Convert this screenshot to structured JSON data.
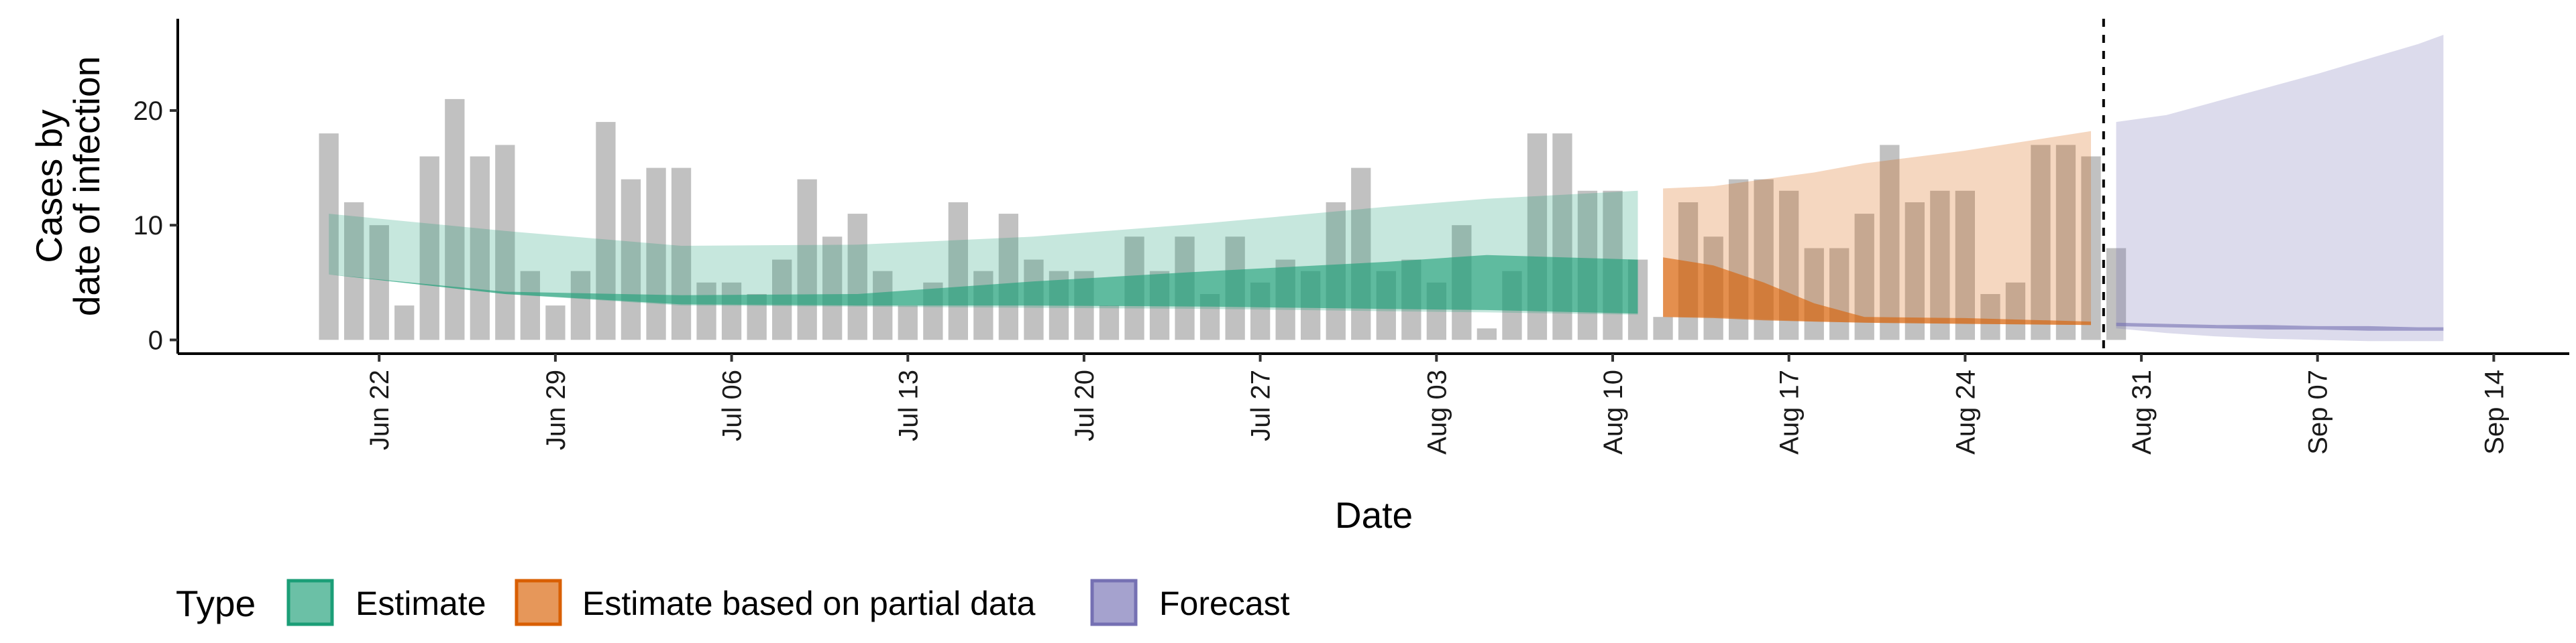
{
  "chart_data": {
    "type": "bar",
    "ylabel_lines": [
      "Cases by",
      "date of infection"
    ],
    "xlabel": "Date",
    "ylim": [
      -1.2,
      28
    ],
    "y_ticks": [
      0,
      10,
      20
    ],
    "x_range": [
      "2020-06-14",
      "2020-09-17"
    ],
    "x_ticks": [
      {
        "date": "2020-06-22",
        "label": "Jun 22"
      },
      {
        "date": "2020-06-29",
        "label": "Jun 29"
      },
      {
        "date": "2020-07-06",
        "label": "Jul 06"
      },
      {
        "date": "2020-07-13",
        "label": "Jul 13"
      },
      {
        "date": "2020-07-20",
        "label": "Jul 20"
      },
      {
        "date": "2020-07-27",
        "label": "Jul 27"
      },
      {
        "date": "2020-08-03",
        "label": "Aug 03"
      },
      {
        "date": "2020-08-10",
        "label": "Aug 10"
      },
      {
        "date": "2020-08-17",
        "label": "Aug 17"
      },
      {
        "date": "2020-08-24",
        "label": "Aug 24"
      },
      {
        "date": "2020-08-31",
        "label": "Aug 31"
      },
      {
        "date": "2020-09-07",
        "label": "Sep 07"
      },
      {
        "date": "2020-09-14",
        "label": "Sep 14"
      }
    ],
    "cutoff_date": "2020-08-29",
    "bars": {
      "start_date": "2020-06-20",
      "color": "#a6a6a6",
      "values": [
        18,
        12,
        10,
        3,
        16,
        21,
        16,
        17,
        6,
        3,
        6,
        19,
        14,
        15,
        15,
        5,
        5,
        4,
        7,
        14,
        9,
        11,
        6,
        3,
        5,
        12,
        6,
        11,
        7,
        6,
        6,
        3,
        9,
        6,
        9,
        4,
        9,
        5,
        7,
        6,
        12,
        15,
        6,
        7,
        5,
        10,
        1,
        6,
        18,
        18,
        13,
        13,
        7,
        2,
        12,
        9,
        14,
        14,
        13,
        8,
        8,
        11,
        17,
        12,
        13,
        13,
        4,
        5,
        17,
        17,
        16,
        8
      ]
    },
    "series": [
      {
        "name": "Estimate",
        "color": "#1b9e77",
        "dates": [
          "2020-06-20",
          "2020-06-27",
          "2020-07-04",
          "2020-07-11",
          "2020-07-18",
          "2020-07-25",
          "2020-08-01",
          "2020-08-05",
          "2020-08-11"
        ],
        "outer_upper": [
          11,
          9.5,
          8.2,
          8.3,
          9.0,
          10.2,
          11.6,
          12.3,
          13.0
        ],
        "outer_lower": [
          5.7,
          4.0,
          3.0,
          2.9,
          2.8,
          2.7,
          2.5,
          2.4,
          2.2
        ],
        "inner_upper": [
          5.7,
          4.2,
          3.9,
          4.0,
          5.1,
          6.0,
          6.8,
          7.4,
          7.0
        ],
        "inner_lower": [
          5.7,
          4.0,
          3.1,
          3.0,
          3.0,
          2.9,
          2.7,
          2.6,
          2.3
        ]
      },
      {
        "name": "Estimate based on partial data",
        "color": "#d95f02",
        "dates": [
          "2020-08-12",
          "2020-08-14",
          "2020-08-16",
          "2020-08-18",
          "2020-08-20",
          "2020-08-24",
          "2020-08-29"
        ],
        "outer_upper": [
          13.2,
          13.4,
          14.0,
          14.6,
          15.4,
          16.5,
          18.2
        ],
        "outer_lower": [
          2.0,
          2.0,
          1.8,
          1.6,
          1.5,
          1.4,
          1.3
        ],
        "inner_upper": [
          7.2,
          6.5,
          5.0,
          3.2,
          2.0,
          1.9,
          1.6
        ],
        "inner_lower": [
          2.0,
          1.9,
          1.7,
          1.6,
          1.5,
          1.4,
          1.3
        ]
      },
      {
        "name": "Forecast",
        "color": "#7570b3",
        "dates": [
          "2020-08-30",
          "2020-09-01",
          "2020-09-03",
          "2020-09-05",
          "2020-09-07",
          "2020-09-09",
          "2020-09-11",
          "2020-09-12"
        ],
        "outer_upper": [
          19.0,
          19.6,
          20.8,
          22.0,
          23.2,
          24.5,
          25.8,
          26.6
        ],
        "outer_lower": [
          1.0,
          0.6,
          0.3,
          0.1,
          0.0,
          -0.1,
          -0.1,
          -0.1
        ],
        "inner_upper": [
          1.5,
          1.4,
          1.3,
          1.3,
          1.2,
          1.2,
          1.1,
          1.1
        ],
        "inner_lower": [
          1.2,
          1.1,
          1.0,
          0.9,
          0.9,
          0.8,
          0.8,
          0.8
        ]
      }
    ],
    "legend": {
      "title": "Type",
      "position": "bottom",
      "items": [
        {
          "label": "Estimate",
          "color": "#1b9e77"
        },
        {
          "label": "Estimate based on partial data",
          "color": "#d95f02"
        },
        {
          "label": "Forecast",
          "color": "#7570b3"
        }
      ]
    }
  }
}
